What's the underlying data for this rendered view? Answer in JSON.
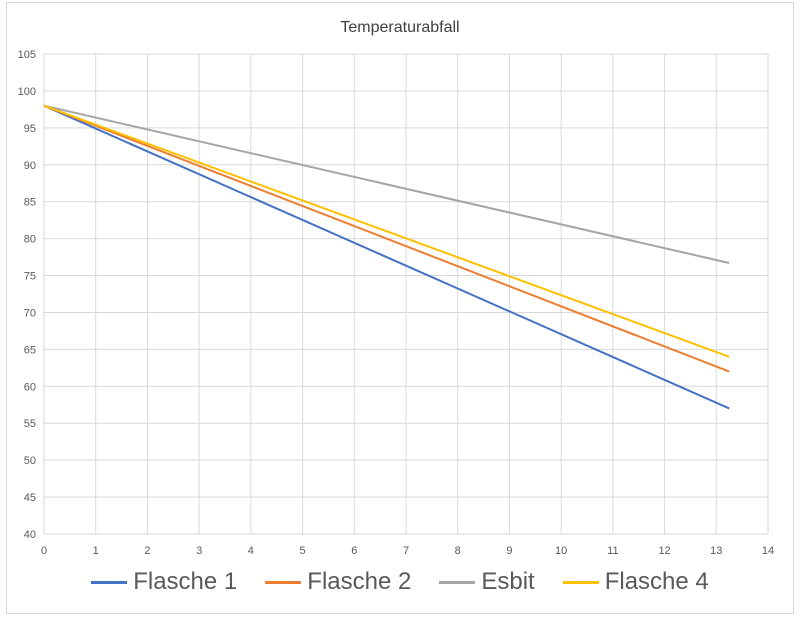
{
  "chart_data": {
    "type": "line",
    "title": "Temperaturabfall",
    "xlabel": "",
    "ylabel": "",
    "xlim": [
      0,
      14
    ],
    "ylim": [
      40,
      105
    ],
    "xticks": [
      "0",
      "1",
      "2",
      "3",
      "4",
      "5",
      "6",
      "7",
      "8",
      "9",
      "10",
      "11",
      "12",
      "13",
      "14"
    ],
    "yticks": [
      "40",
      "45",
      "50",
      "55",
      "60",
      "65",
      "70",
      "75",
      "80",
      "85",
      "90",
      "95",
      "100",
      "105"
    ],
    "grid": true,
    "legend_position": "bottom",
    "series": [
      {
        "name": "Flasche 1",
        "color": "#4472c4",
        "x": [
          0,
          13.25
        ],
        "y": [
          98,
          57
        ]
      },
      {
        "name": "Flasche 2",
        "color": "#ed7d31",
        "x": [
          0,
          13.25
        ],
        "y": [
          98,
          62
        ]
      },
      {
        "name": "Esbit",
        "color": "#a5a5a5",
        "x": [
          0,
          13.25
        ],
        "y": [
          98,
          76.7
        ]
      },
      {
        "name": "Flasche 4",
        "color": "#ffc000",
        "x": [
          0,
          13.25
        ],
        "y": [
          98,
          64
        ]
      }
    ]
  }
}
